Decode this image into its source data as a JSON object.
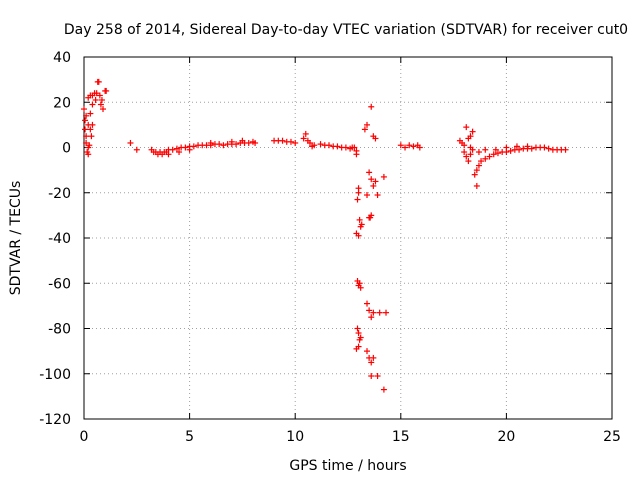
{
  "chart_data": {
    "type": "scatter",
    "title": "Day 258 of 2014, Sidereal Day-to-day VTEC variation (SDTVAR) for receiver cut0",
    "xlabel": "GPS time / hours",
    "ylabel": "SDTVAR / TECUs",
    "xlim": [
      0,
      25
    ],
    "ylim": [
      -120,
      40
    ],
    "xticks": [
      0,
      5,
      10,
      15,
      20,
      25
    ],
    "yticks": [
      -120,
      -100,
      -80,
      -60,
      -40,
      -20,
      0,
      20,
      40
    ],
    "xtick_labels": [
      "0",
      "5",
      "10",
      "15",
      "20",
      "25"
    ],
    "ytick_labels": [
      "-120",
      "-100",
      "-80",
      "-60",
      "-40",
      "-20",
      "0",
      "20",
      "40"
    ],
    "grid": true,
    "marker": "+",
    "color": "#ff0000",
    "series": [
      {
        "name": "SDTVAR",
        "points": [
          [
            0.0,
            17
          ],
          [
            0.05,
            12
          ],
          [
            0.05,
            8
          ],
          [
            0.1,
            5
          ],
          [
            0.1,
            2
          ],
          [
            0.15,
            -2
          ],
          [
            0.2,
            -3
          ],
          [
            0.1,
            14
          ],
          [
            0.2,
            10
          ],
          [
            0.3,
            8
          ],
          [
            0.35,
            5
          ],
          [
            0.4,
            10
          ],
          [
            0.3,
            15
          ],
          [
            0.4,
            19
          ],
          [
            0.2,
            22
          ],
          [
            0.3,
            23
          ],
          [
            0.4,
            23
          ],
          [
            0.5,
            24
          ],
          [
            0.55,
            21
          ],
          [
            0.6,
            24
          ],
          [
            0.65,
            29
          ],
          [
            0.7,
            29
          ],
          [
            0.75,
            23
          ],
          [
            0.8,
            19
          ],
          [
            0.85,
            21
          ],
          [
            0.9,
            17
          ],
          [
            1.0,
            25
          ],
          [
            1.05,
            25
          ],
          [
            0.2,
            0
          ],
          [
            0.25,
            1
          ],
          [
            2.2,
            2
          ],
          [
            2.5,
            -1
          ],
          [
            3.2,
            -1
          ],
          [
            3.3,
            -2
          ],
          [
            3.4,
            -2
          ],
          [
            3.5,
            -3
          ],
          [
            3.6,
            -2
          ],
          [
            3.7,
            -3
          ],
          [
            3.8,
            -2
          ],
          [
            3.9,
            -2
          ],
          [
            4.0,
            -1
          ],
          [
            4.2,
            -1
          ],
          [
            4.4,
            -0.5
          ],
          [
            4.6,
            0
          ],
          [
            4.8,
            0
          ],
          [
            5.0,
            0.5
          ],
          [
            5.2,
            0.5
          ],
          [
            5.4,
            1
          ],
          [
            5.6,
            1
          ],
          [
            5.8,
            1
          ],
          [
            6.0,
            1
          ],
          [
            6.2,
            1.5
          ],
          [
            6.4,
            1.5
          ],
          [
            6.6,
            1
          ],
          [
            6.8,
            1.5
          ],
          [
            7.0,
            1.5
          ],
          [
            7.2,
            1.5
          ],
          [
            7.4,
            2
          ],
          [
            7.6,
            2
          ],
          [
            7.8,
            2
          ],
          [
            8.0,
            2.5
          ],
          [
            8.1,
            2
          ],
          [
            4.0,
            -3
          ],
          [
            4.5,
            -2
          ],
          [
            5.0,
            -1
          ],
          [
            6.0,
            2
          ],
          [
            7.0,
            2.5
          ],
          [
            7.5,
            3
          ],
          [
            9.0,
            3
          ],
          [
            9.2,
            3
          ],
          [
            9.4,
            3
          ],
          [
            9.6,
            2.5
          ],
          [
            9.8,
            2.5
          ],
          [
            10.0,
            2
          ],
          [
            10.4,
            4
          ],
          [
            10.5,
            6
          ],
          [
            10.6,
            3
          ],
          [
            10.7,
            2
          ],
          [
            10.8,
            0.5
          ],
          [
            10.9,
            1
          ],
          [
            11.2,
            1.5
          ],
          [
            11.4,
            1
          ],
          [
            11.6,
            1
          ],
          [
            11.8,
            0.5
          ],
          [
            12.0,
            0.5
          ],
          [
            12.2,
            0
          ],
          [
            12.4,
            0
          ],
          [
            12.6,
            -0.5
          ],
          [
            12.7,
            0
          ],
          [
            12.8,
            0
          ],
          [
            12.9,
            -1.5
          ],
          [
            12.9,
            -3
          ],
          [
            13.0,
            -18
          ],
          [
            13.0,
            -20
          ],
          [
            12.95,
            -23
          ],
          [
            13.05,
            -32
          ],
          [
            13.1,
            -35
          ],
          [
            12.9,
            -38
          ],
          [
            13.0,
            -39
          ],
          [
            13.15,
            -34
          ],
          [
            13.5,
            -31
          ],
          [
            13.55,
            -31
          ],
          [
            13.6,
            -30
          ],
          [
            13.5,
            -11
          ],
          [
            13.6,
            -14
          ],
          [
            13.7,
            -17
          ],
          [
            13.4,
            -21
          ],
          [
            13.8,
            -15
          ],
          [
            13.9,
            -21
          ],
          [
            14.2,
            -13
          ],
          [
            13.3,
            8
          ],
          [
            13.4,
            10
          ],
          [
            13.6,
            18
          ],
          [
            13.7,
            5
          ],
          [
            13.8,
            4
          ],
          [
            12.95,
            -59
          ],
          [
            13.05,
            -60
          ],
          [
            13.1,
            -62
          ],
          [
            13.0,
            -61
          ],
          [
            13.4,
            -69
          ],
          [
            13.5,
            -72
          ],
          [
            13.6,
            -75
          ],
          [
            13.7,
            -73
          ],
          [
            14.0,
            -73
          ],
          [
            14.3,
            -73
          ],
          [
            12.95,
            -80
          ],
          [
            13.0,
            -82
          ],
          [
            13.05,
            -85
          ],
          [
            13.1,
            -84
          ],
          [
            12.9,
            -89
          ],
          [
            13.0,
            -88
          ],
          [
            13.4,
            -90
          ],
          [
            13.5,
            -93
          ],
          [
            13.6,
            -95
          ],
          [
            13.7,
            -93
          ],
          [
            13.6,
            -101
          ],
          [
            13.9,
            -101
          ],
          [
            14.2,
            -107
          ],
          [
            15.0,
            1
          ],
          [
            15.2,
            0
          ],
          [
            15.4,
            1
          ],
          [
            15.6,
            0.5
          ],
          [
            15.8,
            1
          ],
          [
            15.9,
            0
          ],
          [
            17.8,
            3
          ],
          [
            17.9,
            2
          ],
          [
            18.0,
            1
          ],
          [
            18.0,
            -2
          ],
          [
            18.1,
            -4
          ],
          [
            18.2,
            -6
          ],
          [
            18.3,
            -3
          ],
          [
            18.2,
            4
          ],
          [
            18.3,
            5
          ],
          [
            18.1,
            9
          ],
          [
            18.4,
            7
          ],
          [
            18.3,
            0
          ],
          [
            18.4,
            -1
          ],
          [
            18.5,
            -12
          ],
          [
            18.6,
            -17
          ],
          [
            18.6,
            -10
          ],
          [
            18.7,
            -8
          ],
          [
            18.8,
            -6
          ],
          [
            19.0,
            -5
          ],
          [
            19.2,
            -4
          ],
          [
            19.4,
            -3
          ],
          [
            19.6,
            -2.5
          ],
          [
            19.8,
            -2
          ],
          [
            20.0,
            -2
          ],
          [
            20.2,
            -1.5
          ],
          [
            20.4,
            -1
          ],
          [
            20.6,
            -1
          ],
          [
            20.8,
            -0.5
          ],
          [
            21.0,
            -0.5
          ],
          [
            21.2,
            -0.5
          ],
          [
            21.4,
            0
          ],
          [
            21.6,
            0
          ],
          [
            21.8,
            0
          ],
          [
            22.0,
            -0.5
          ],
          [
            22.2,
            -1
          ],
          [
            22.4,
            -1
          ],
          [
            22.6,
            -1
          ],
          [
            22.8,
            -1
          ],
          [
            18.7,
            -2
          ],
          [
            19.0,
            -1
          ],
          [
            19.5,
            -1
          ],
          [
            20.0,
            0
          ],
          [
            20.5,
            0.5
          ],
          [
            21.0,
            0.5
          ]
        ]
      }
    ]
  }
}
